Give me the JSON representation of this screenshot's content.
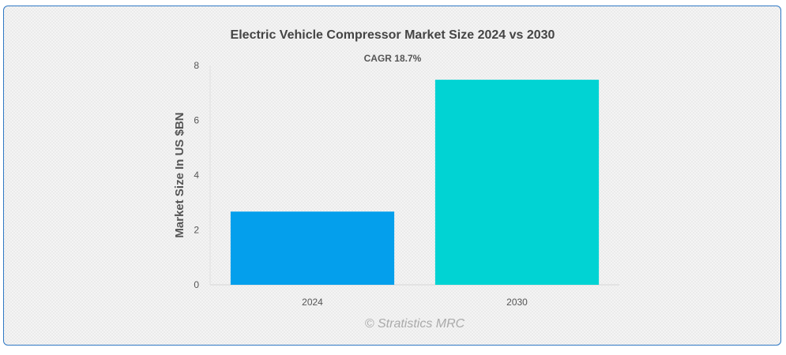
{
  "chart_data": {
    "type": "bar",
    "title": "Electric Vehicle Compressor Market Size 2024 vs 2030",
    "subtitle": "CAGR 18.7%",
    "ylabel": "Market Size In US $BN",
    "xlabel": "",
    "categories": [
      "2024",
      "2030"
    ],
    "values": [
      2.67,
      7.48
    ],
    "colors": [
      "#049fec",
      "#01d3d3"
    ],
    "ylim": [
      0,
      8
    ],
    "yticks": [
      "0",
      "2",
      "4",
      "6",
      "8"
    ],
    "grid": false,
    "legend": "none"
  },
  "credit": "© Stratistics MRC"
}
